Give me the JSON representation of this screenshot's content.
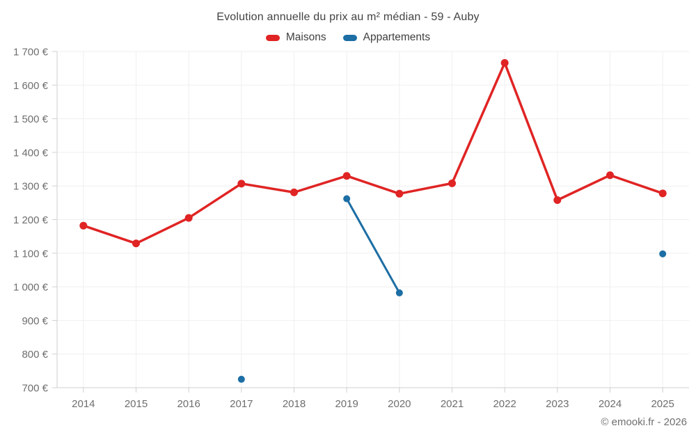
{
  "page": {
    "footer": "© emooki.fr - 2026"
  },
  "chart_data": {
    "type": "line",
    "title": "Evolution annuelle du prix au m² médian - 59 - Auby",
    "categories": [
      "2014",
      "2015",
      "2016",
      "2017",
      "2018",
      "2019",
      "2020",
      "2021",
      "2022",
      "2023",
      "2024",
      "2025"
    ],
    "series": [
      {
        "name": "Maisons",
        "color": "#e02424",
        "values": [
          1182,
          1129,
          1205,
          1307,
          1281,
          1330,
          1277,
          1308,
          1666,
          1258,
          1332,
          1278
        ]
      },
      {
        "name": "Appartements",
        "color": "#1c6ea4",
        "values": [
          null,
          null,
          null,
          725,
          null,
          1262,
          982,
          null,
          null,
          null,
          null,
          1098
        ]
      }
    ],
    "ylim": [
      700,
      1700
    ],
    "y_tick_step": 100,
    "y_tick_labels": [
      "700 €",
      "800 €",
      "900 €",
      "1 000 €",
      "1 100 €",
      "1 200 €",
      "1 300 €",
      "1 400 €",
      "1 500 €",
      "1 600 €",
      "1 700 €"
    ],
    "grid": true,
    "legend_position": "top",
    "xlabel": "",
    "ylabel": ""
  }
}
